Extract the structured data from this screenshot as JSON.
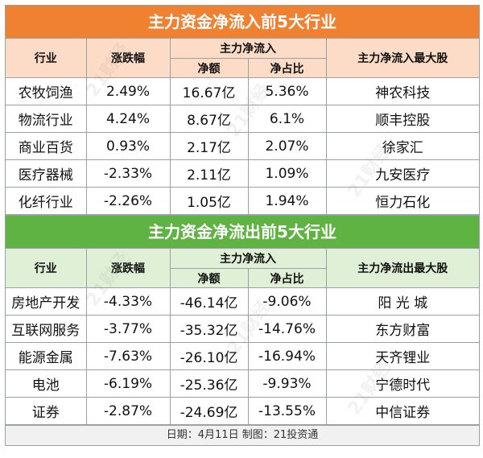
{
  "inflow": {
    "title": "主力资金净流入前5大行业",
    "headers": {
      "industry": "行业",
      "change": "涨跌幅",
      "main_flow": "主力净流入",
      "amount": "净额",
      "ratio": "净占比",
      "top_stock": "主力净流入最大股"
    },
    "rows": [
      {
        "industry": "农牧饲渔",
        "change": "2.49%",
        "amount": "16.67亿",
        "ratio": "5.36%",
        "top_stock": "神农科技"
      },
      {
        "industry": "物流行业",
        "change": "4.24%",
        "amount": "8.67亿",
        "ratio": "6.1%",
        "top_stock": "顺丰控股"
      },
      {
        "industry": "商业百货",
        "change": "0.93%",
        "amount": "2.17亿",
        "ratio": "2.07%",
        "top_stock": "徐家汇"
      },
      {
        "industry": "医疗器械",
        "change": "-2.33%",
        "amount": "2.11亿",
        "ratio": "1.09%",
        "top_stock": "九安医疗"
      },
      {
        "industry": "化纤行业",
        "change": "-2.26%",
        "amount": "1.05亿",
        "ratio": "1.94%",
        "top_stock": "恒力石化"
      }
    ]
  },
  "outflow": {
    "title": "主力资金净流出前5大行业",
    "headers": {
      "industry": "行业",
      "change": "涨跌幅",
      "main_flow": "主力净流入",
      "amount": "净额",
      "ratio": "净占比",
      "top_stock": "主力净流出最大股"
    },
    "rows": [
      {
        "industry": "房地产开发",
        "change": "-4.33%",
        "amount": "-46.14亿",
        "ratio": "-9.06%",
        "top_stock": "阳 光 城"
      },
      {
        "industry": "互联网服务",
        "change": "-3.77%",
        "amount": "-35.32亿",
        "ratio": "-14.76%",
        "top_stock": "东方财富"
      },
      {
        "industry": "能源金属",
        "change": "-7.63%",
        "amount": "-26.10亿",
        "ratio": "-16.94%",
        "top_stock": "天齐锂业"
      },
      {
        "industry": "电池",
        "change": "-6.19%",
        "amount": "-25.36亿",
        "ratio": "-9.93%",
        "top_stock": "宁德时代"
      },
      {
        "industry": "证券",
        "change": "-2.87%",
        "amount": "-24.69亿",
        "ratio": "-13.55%",
        "top_stock": "中信证券"
      }
    ]
  },
  "footer": "日期：4月11日 制图：21投资通",
  "watermark": "21财经",
  "colors": {
    "inflow_banner": "#ef8131",
    "outflow_banner": "#5fb343"
  }
}
